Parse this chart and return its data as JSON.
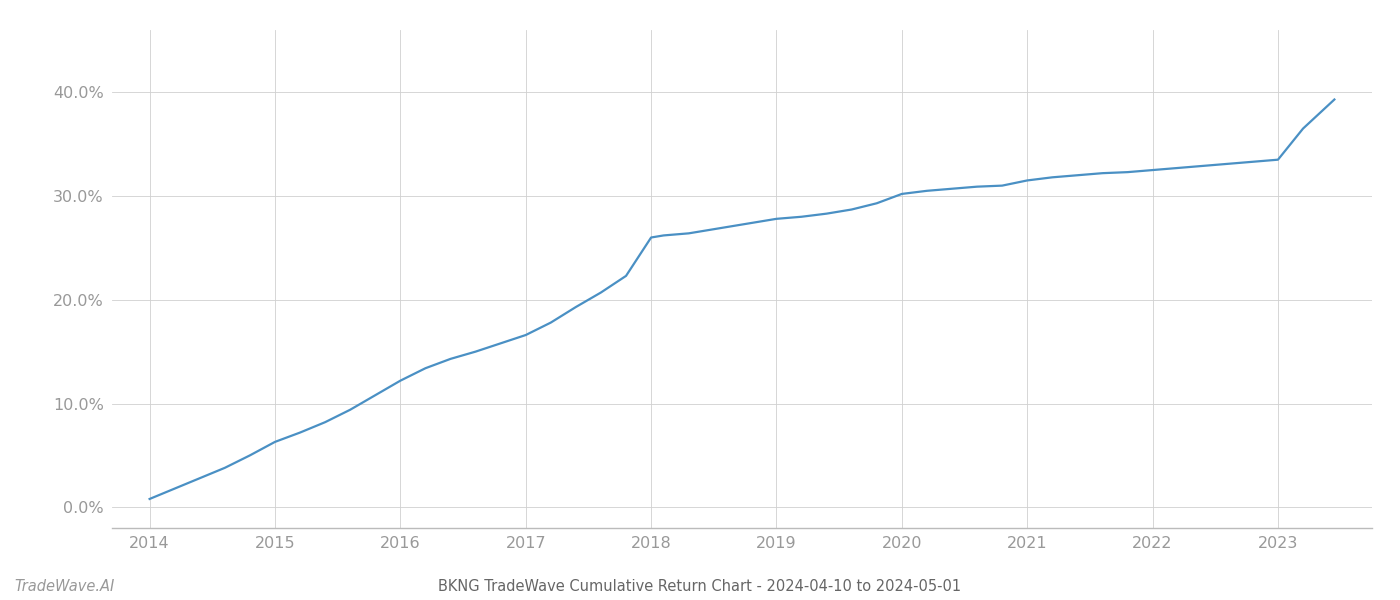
{
  "title": "BKNG TradeWave Cumulative Return Chart - 2024-04-10 to 2024-05-01",
  "watermark": "TradeWave.AI",
  "line_color": "#4a90c4",
  "background_color": "#ffffff",
  "grid_color": "#d0d0d0",
  "x_values": [
    2014.0,
    2014.2,
    2014.4,
    2014.6,
    2014.8,
    2015.0,
    2015.2,
    2015.4,
    2015.6,
    2015.8,
    2016.0,
    2016.2,
    2016.4,
    2016.6,
    2016.8,
    2017.0,
    2017.2,
    2017.4,
    2017.6,
    2017.8,
    2018.0,
    2018.1,
    2018.3,
    2018.5,
    2018.7,
    2018.9,
    2019.0,
    2019.2,
    2019.4,
    2019.6,
    2019.8,
    2020.0,
    2020.2,
    2020.4,
    2020.6,
    2020.8,
    2021.0,
    2021.2,
    2021.4,
    2021.6,
    2021.8,
    2022.0,
    2022.2,
    2022.4,
    2022.6,
    2022.8,
    2023.0,
    2023.2,
    2023.45
  ],
  "y_values": [
    0.008,
    0.018,
    0.028,
    0.038,
    0.05,
    0.063,
    0.072,
    0.082,
    0.094,
    0.108,
    0.122,
    0.134,
    0.143,
    0.15,
    0.158,
    0.166,
    0.178,
    0.193,
    0.207,
    0.223,
    0.26,
    0.262,
    0.264,
    0.268,
    0.272,
    0.276,
    0.278,
    0.28,
    0.283,
    0.287,
    0.293,
    0.302,
    0.305,
    0.307,
    0.309,
    0.31,
    0.315,
    0.318,
    0.32,
    0.322,
    0.323,
    0.325,
    0.327,
    0.329,
    0.331,
    0.333,
    0.335,
    0.365,
    0.393
  ],
  "xlim": [
    2013.7,
    2023.75
  ],
  "ylim": [
    -0.02,
    0.46
  ],
  "yticks": [
    0.0,
    0.1,
    0.2,
    0.3,
    0.4
  ],
  "xticks": [
    2014,
    2015,
    2016,
    2017,
    2018,
    2019,
    2020,
    2021,
    2022,
    2023
  ],
  "line_width": 1.6,
  "tick_label_color": "#999999",
  "title_color": "#666666",
  "watermark_color": "#999999",
  "title_fontsize": 10.5,
  "tick_fontsize": 11.5,
  "watermark_fontsize": 10.5
}
